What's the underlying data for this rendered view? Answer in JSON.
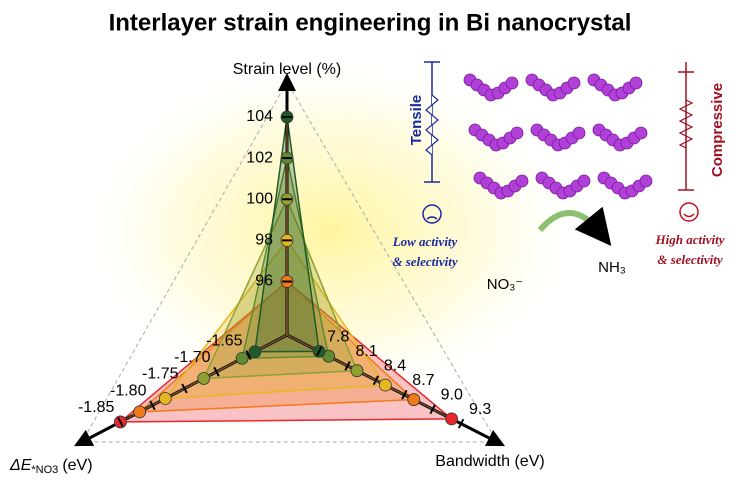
{
  "chart_data": {
    "type": "radar",
    "title": "Interlayer strain engineering in Bi nanocrystal",
    "axes": [
      {
        "label": "Strain level (%)",
        "lim": [
          93.4,
          105.7
        ],
        "ticks": [
          96,
          98,
          100,
          102,
          104
        ]
      },
      {
        "label": {
          "symbol": "ΔE",
          "subscript": "*NO3",
          "unit": "(eV)"
        },
        "lim": [
          -1.59,
          -1.91
        ],
        "ticks": [
          -1.65,
          {
            "value": -1.7,
            "label": "-1.70"
          },
          -1.75,
          {
            "value": -1.8,
            "label": "-1.80"
          },
          -1.85
        ]
      },
      {
        "label": "Bandwidth (eV)",
        "lim": [
          7.46,
          9.68
        ],
        "ticks": [
          7.8,
          8.1,
          8.4,
          8.7,
          {
            "value": 9,
            "label": "9.0"
          },
          9.3
        ]
      }
    ],
    "series": [
      {
        "color": "#e8282e",
        "values": [
          96,
          -1.85,
          9.2
        ]
      },
      {
        "color": "#f07a1a",
        "values": [
          96,
          -1.82,
          8.8
        ]
      },
      {
        "color": "#e6b820",
        "values": [
          98,
          -1.78,
          8.5
        ]
      },
      {
        "color": "#8fa030",
        "values": [
          100,
          -1.72,
          8.2
        ]
      },
      {
        "color": "#5e8a30",
        "values": [
          102,
          -1.66,
          7.9
        ]
      },
      {
        "color": "#1f5a2a",
        "values": [
          104,
          -1.64,
          7.8
        ]
      }
    ],
    "illustration": {
      "tensile": "Tensile",
      "compressive": "Compressive",
      "low": [
        "Low activity",
        "& selectivity"
      ],
      "high": [
        "High activity",
        "& selectivity"
      ],
      "reactant": "NO₃⁻",
      "product": "NH₃"
    }
  }
}
